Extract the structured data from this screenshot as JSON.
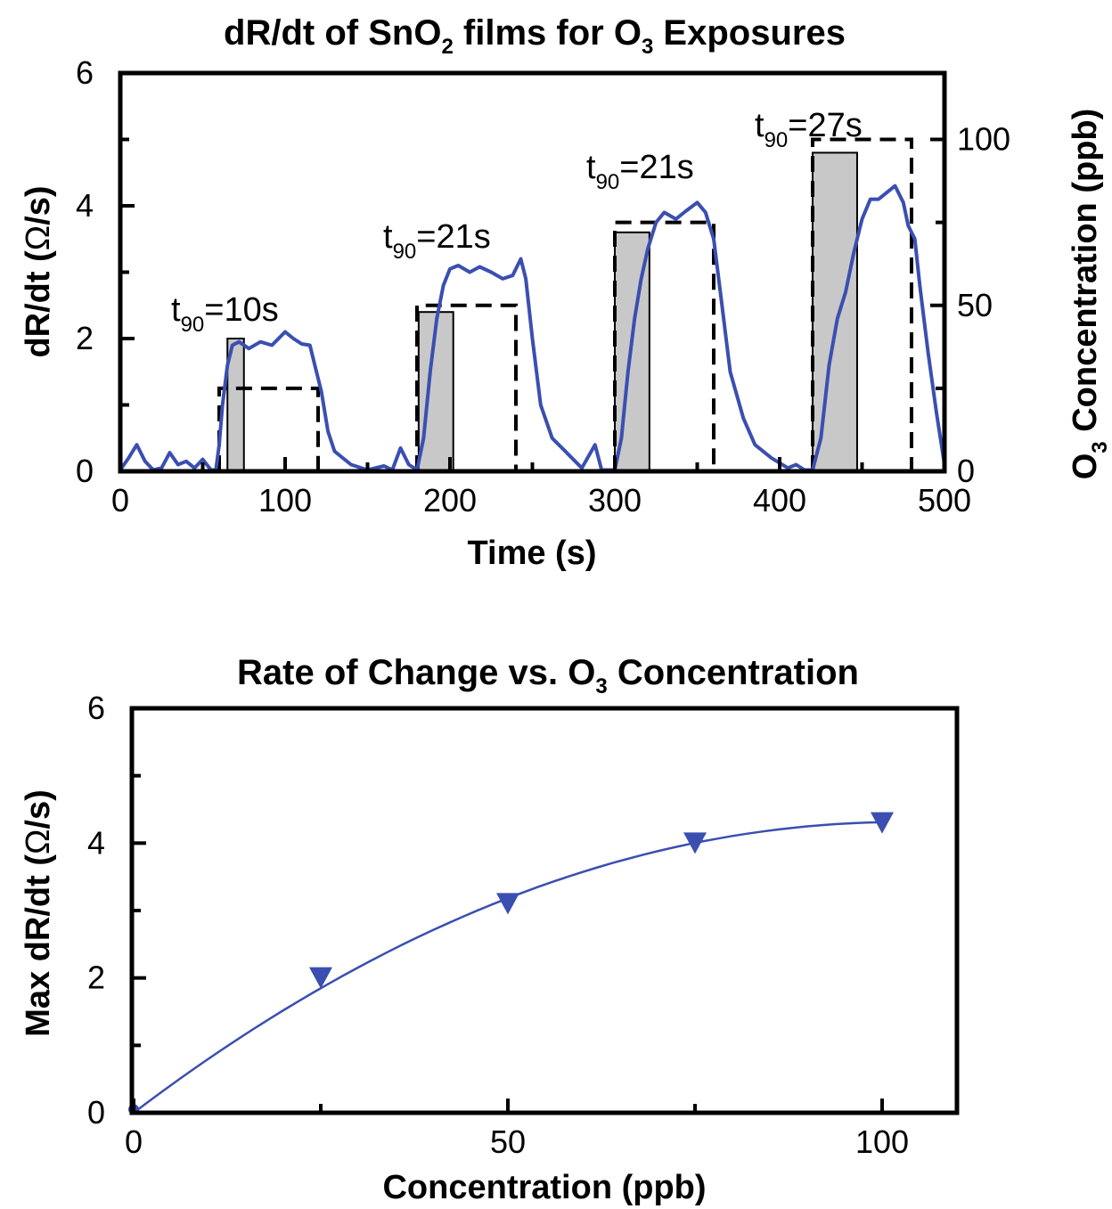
{
  "chart_data": [
    {
      "type": "line",
      "title": "dR/dt of SnO",
      "title_sub": "2",
      "title_mid": " films for O",
      "title_sub2": "3",
      "title_end": " Exposures",
      "xlabel": "Time (s)",
      "ylabel_left_a": "dR/dt (",
      "ylabel_left_sym": "Ω",
      "ylabel_left_b": "/s)",
      "ylabel_right_a": "O",
      "ylabel_right_sub": "3",
      "ylabel_right_b": " Concentration (ppb)",
      "xlim": [
        0,
        500
      ],
      "ylim": [
        0,
        6
      ],
      "y2lim": [
        0,
        120
      ],
      "x_ticks": [
        "0",
        "100",
        "200",
        "300",
        "400",
        "500"
      ],
      "y_ticks": [
        "0",
        "2",
        "4",
        "6"
      ],
      "y2_ticks": [
        "0",
        "50",
        "100"
      ],
      "annotations": [
        {
          "t": "t",
          "sub": "90",
          "rest": "=10s"
        },
        {
          "t": "t",
          "sub": "90",
          "rest": "=21s"
        },
        {
          "t": "t",
          "sub": "90",
          "rest": "=21s"
        },
        {
          "t": "t",
          "sub": "90",
          "rest": "=27s"
        }
      ],
      "t90_bars": [
        {
          "x0": 65,
          "x1": 75,
          "height": 2.0
        },
        {
          "x0": 181,
          "x1": 202,
          "height": 2.4
        },
        {
          "x0": 300,
          "x1": 321,
          "height": 3.6
        },
        {
          "x0": 420,
          "x1": 447,
          "height": 4.8
        }
      ],
      "o3_steps": [
        {
          "x0": 60,
          "x1": 120,
          "ppb": 25
        },
        {
          "x0": 180,
          "x1": 240,
          "ppb": 50
        },
        {
          "x0": 300,
          "x1": 360,
          "ppb": 75
        },
        {
          "x0": 420,
          "x1": 480,
          "ppb": 100
        }
      ],
      "series": [
        {
          "color": "#3a4fb0",
          "points": [
            [
              0,
              0.02
            ],
            [
              5,
              0.2
            ],
            [
              10,
              0.4
            ],
            [
              15,
              0.15
            ],
            [
              20,
              0.02
            ],
            [
              25,
              0.05
            ],
            [
              30,
              0.28
            ],
            [
              35,
              0.1
            ],
            [
              40,
              0.15
            ],
            [
              45,
              0.05
            ],
            [
              50,
              0.18
            ],
            [
              55,
              0.02
            ],
            [
              58,
              0.02
            ],
            [
              60,
              0.4
            ],
            [
              62,
              1.0
            ],
            [
              65,
              1.6
            ],
            [
              68,
              1.9
            ],
            [
              72,
              1.95
            ],
            [
              78,
              1.85
            ],
            [
              85,
              1.95
            ],
            [
              92,
              1.9
            ],
            [
              100,
              2.1
            ],
            [
              105,
              2.0
            ],
            [
              110,
              1.92
            ],
            [
              115,
              1.9
            ],
            [
              118,
              1.6
            ],
            [
              122,
              1.2
            ],
            [
              126,
              0.6
            ],
            [
              130,
              0.3
            ],
            [
              140,
              0.1
            ],
            [
              150,
              0.02
            ],
            [
              160,
              0.08
            ],
            [
              165,
              0.02
            ],
            [
              170,
              0.35
            ],
            [
              175,
              0.1
            ],
            [
              180,
              0.02
            ],
            [
              184,
              0.5
            ],
            [
              188,
              1.5
            ],
            [
              192,
              2.3
            ],
            [
              196,
              2.8
            ],
            [
              200,
              3.05
            ],
            [
              205,
              3.1
            ],
            [
              212,
              3.0
            ],
            [
              218,
              3.08
            ],
            [
              225,
              3.0
            ],
            [
              232,
              2.9
            ],
            [
              238,
              2.95
            ],
            [
              243,
              3.2
            ],
            [
              246,
              2.9
            ],
            [
              250,
              2.0
            ],
            [
              255,
              1.0
            ],
            [
              262,
              0.5
            ],
            [
              270,
              0.3
            ],
            [
              280,
              0.05
            ],
            [
              288,
              0.4
            ],
            [
              292,
              0.02
            ],
            [
              300,
              0.02
            ],
            [
              304,
              0.5
            ],
            [
              308,
              1.5
            ],
            [
              312,
              2.3
            ],
            [
              316,
              2.9
            ],
            [
              320,
              3.35
            ],
            [
              325,
              3.75
            ],
            [
              330,
              3.9
            ],
            [
              337,
              3.8
            ],
            [
              343,
              3.92
            ],
            [
              350,
              4.05
            ],
            [
              355,
              3.9
            ],
            [
              360,
              3.5
            ],
            [
              365,
              2.5
            ],
            [
              370,
              1.5
            ],
            [
              378,
              0.8
            ],
            [
              385,
              0.4
            ],
            [
              395,
              0.2
            ],
            [
              405,
              0.05
            ],
            [
              410,
              0.1
            ],
            [
              415,
              0.02
            ],
            [
              420,
              0.02
            ],
            [
              425,
              0.5
            ],
            [
              430,
              1.6
            ],
            [
              435,
              2.3
            ],
            [
              440,
              2.7
            ],
            [
              445,
              3.3
            ],
            [
              450,
              3.8
            ],
            [
              455,
              4.1
            ],
            [
              460,
              4.1
            ],
            [
              465,
              4.2
            ],
            [
              470,
              4.3
            ],
            [
              475,
              4.05
            ],
            [
              478,
              3.7
            ],
            [
              482,
              3.5
            ],
            [
              485,
              2.8
            ],
            [
              490,
              1.8
            ],
            [
              495,
              0.9
            ],
            [
              500,
              0.1
            ]
          ]
        }
      ]
    },
    {
      "type": "scatter",
      "title": "Rate of Change vs. O",
      "title_sub": "3",
      "title_end": " Concentration",
      "xlabel": "Concentration (ppb)",
      "ylabel_a": "Max dR/dt (",
      "ylabel_sym": "Ω",
      "ylabel_b": "/s)",
      "xlim": [
        0,
        110
      ],
      "ylim": [
        0,
        6
      ],
      "x_ticks": [
        "0",
        "50",
        "100"
      ],
      "y_ticks": [
        "0",
        "2",
        "4",
        "6"
      ],
      "series": [
        {
          "color": "#3a4fb0",
          "x": [
            0,
            25,
            50,
            75,
            100
          ],
          "y": [
            0.05,
            2.0,
            3.1,
            4.0,
            4.3
          ]
        }
      ],
      "fit": {
        "color": "#3a4fb0",
        "coef": [
          0.0,
          0.0842,
          -0.000411
        ]
      }
    }
  ]
}
